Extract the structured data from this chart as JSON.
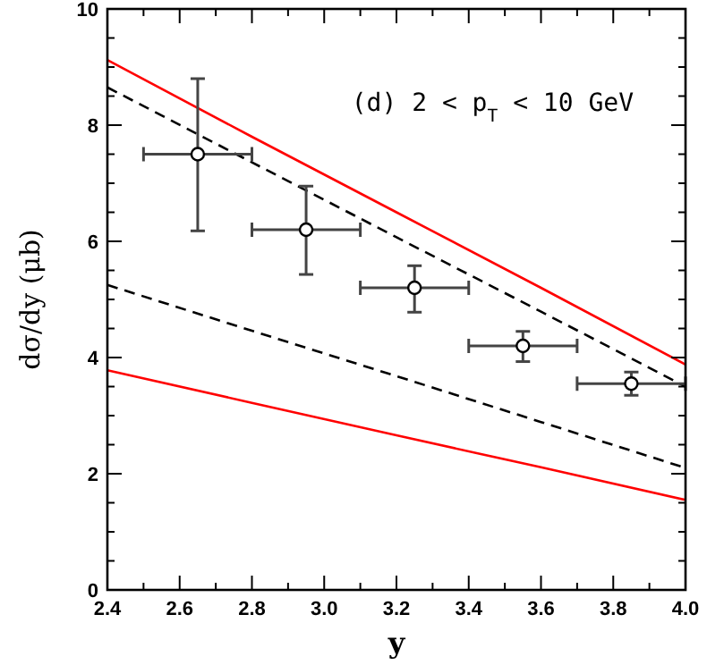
{
  "chart_data": {
    "type": "line",
    "xlabel": "y",
    "ylabel": "dσ/dy (μb)",
    "annotations": [
      "(d) 2 < p$_{T}$ < 10 GeV"
    ],
    "xlim": [
      2.4,
      4.0
    ],
    "ylim": [
      0,
      10
    ],
    "xticks": [
      2.4,
      {
        "value": 2.5,
        "label": null
      },
      2.6,
      {
        "value": 2.7,
        "label": null
      },
      2.8,
      {
        "value": 2.9,
        "label": null
      },
      {
        "value": 3.0,
        "label": "3.0"
      },
      {
        "value": 3.1,
        "label": null
      },
      3.2,
      {
        "value": 3.3,
        "label": null
      },
      3.4,
      {
        "value": 3.5,
        "label": null
      },
      3.6,
      {
        "value": 3.7,
        "label": null
      },
      3.8,
      {
        "value": 3.9,
        "label": null
      },
      {
        "value": 4.0,
        "label": "4.0"
      }
    ],
    "yticks": [
      0,
      {
        "value": 0.5,
        "label": null
      },
      {
        "value": 1,
        "label": null
      },
      {
        "value": 1.5,
        "label": null
      },
      2,
      {
        "value": 2.5,
        "label": null
      },
      {
        "value": 3,
        "label": null
      },
      {
        "value": 3.5,
        "label": null
      },
      4,
      {
        "value": 4.5,
        "label": null
      },
      {
        "value": 5,
        "label": null
      },
      {
        "value": 5.5,
        "label": null
      },
      6,
      {
        "value": 6.5,
        "label": null
      },
      {
        "value": 7,
        "label": null
      },
      {
        "value": 7.5,
        "label": null
      },
      8,
      {
        "value": 8.5,
        "label": null
      },
      {
        "value": 9,
        "label": null
      },
      {
        "value": 9.5,
        "label": null
      },
      10
    ],
    "grid": false,
    "series": [
      {
        "color": "#ff0000",
        "line_style": "solid",
        "x": [
          2.4,
          2.8,
          3.2,
          3.6,
          4.0
        ],
        "values": [
          9.12,
          7.8,
          6.5,
          5.2,
          3.88
        ]
      },
      {
        "color": "#000000",
        "line_style": "dashed",
        "x": [
          2.4,
          2.8,
          3.2,
          3.6,
          4.0
        ],
        "values": [
          8.65,
          7.36,
          6.07,
          4.79,
          3.5
        ]
      },
      {
        "color": "#000000",
        "line_style": "dashed",
        "x": [
          2.4,
          2.8,
          3.2,
          3.6,
          4.0
        ],
        "values": [
          5.25,
          4.46,
          3.68,
          2.89,
          2.1
        ]
      },
      {
        "color": "#ff0000",
        "line_style": "solid",
        "x": [
          2.4,
          2.8,
          3.2,
          3.6,
          4.0
        ],
        "values": [
          3.78,
          3.22,
          2.66,
          2.11,
          1.55
        ]
      },
      {
        "type": "scatter",
        "color": "#000000",
        "marker": "circle",
        "x": [
          2.65,
          2.95,
          3.25,
          3.55,
          3.85
        ],
        "values": [
          7.5,
          6.2,
          5.2,
          4.2,
          3.55
        ],
        "errors": [
          [
            6.18,
            8.8
          ],
          [
            5.43,
            6.95
          ],
          [
            4.78,
            5.58
          ],
          [
            3.93,
            4.45
          ],
          [
            3.35,
            3.75
          ]
        ],
        "xerrors": [
          [
            2.5,
            2.8
          ],
          [
            2.8,
            3.1
          ],
          [
            3.1,
            3.4
          ],
          [
            3.4,
            3.7
          ],
          [
            3.7,
            4.0
          ]
        ]
      }
    ]
  }
}
